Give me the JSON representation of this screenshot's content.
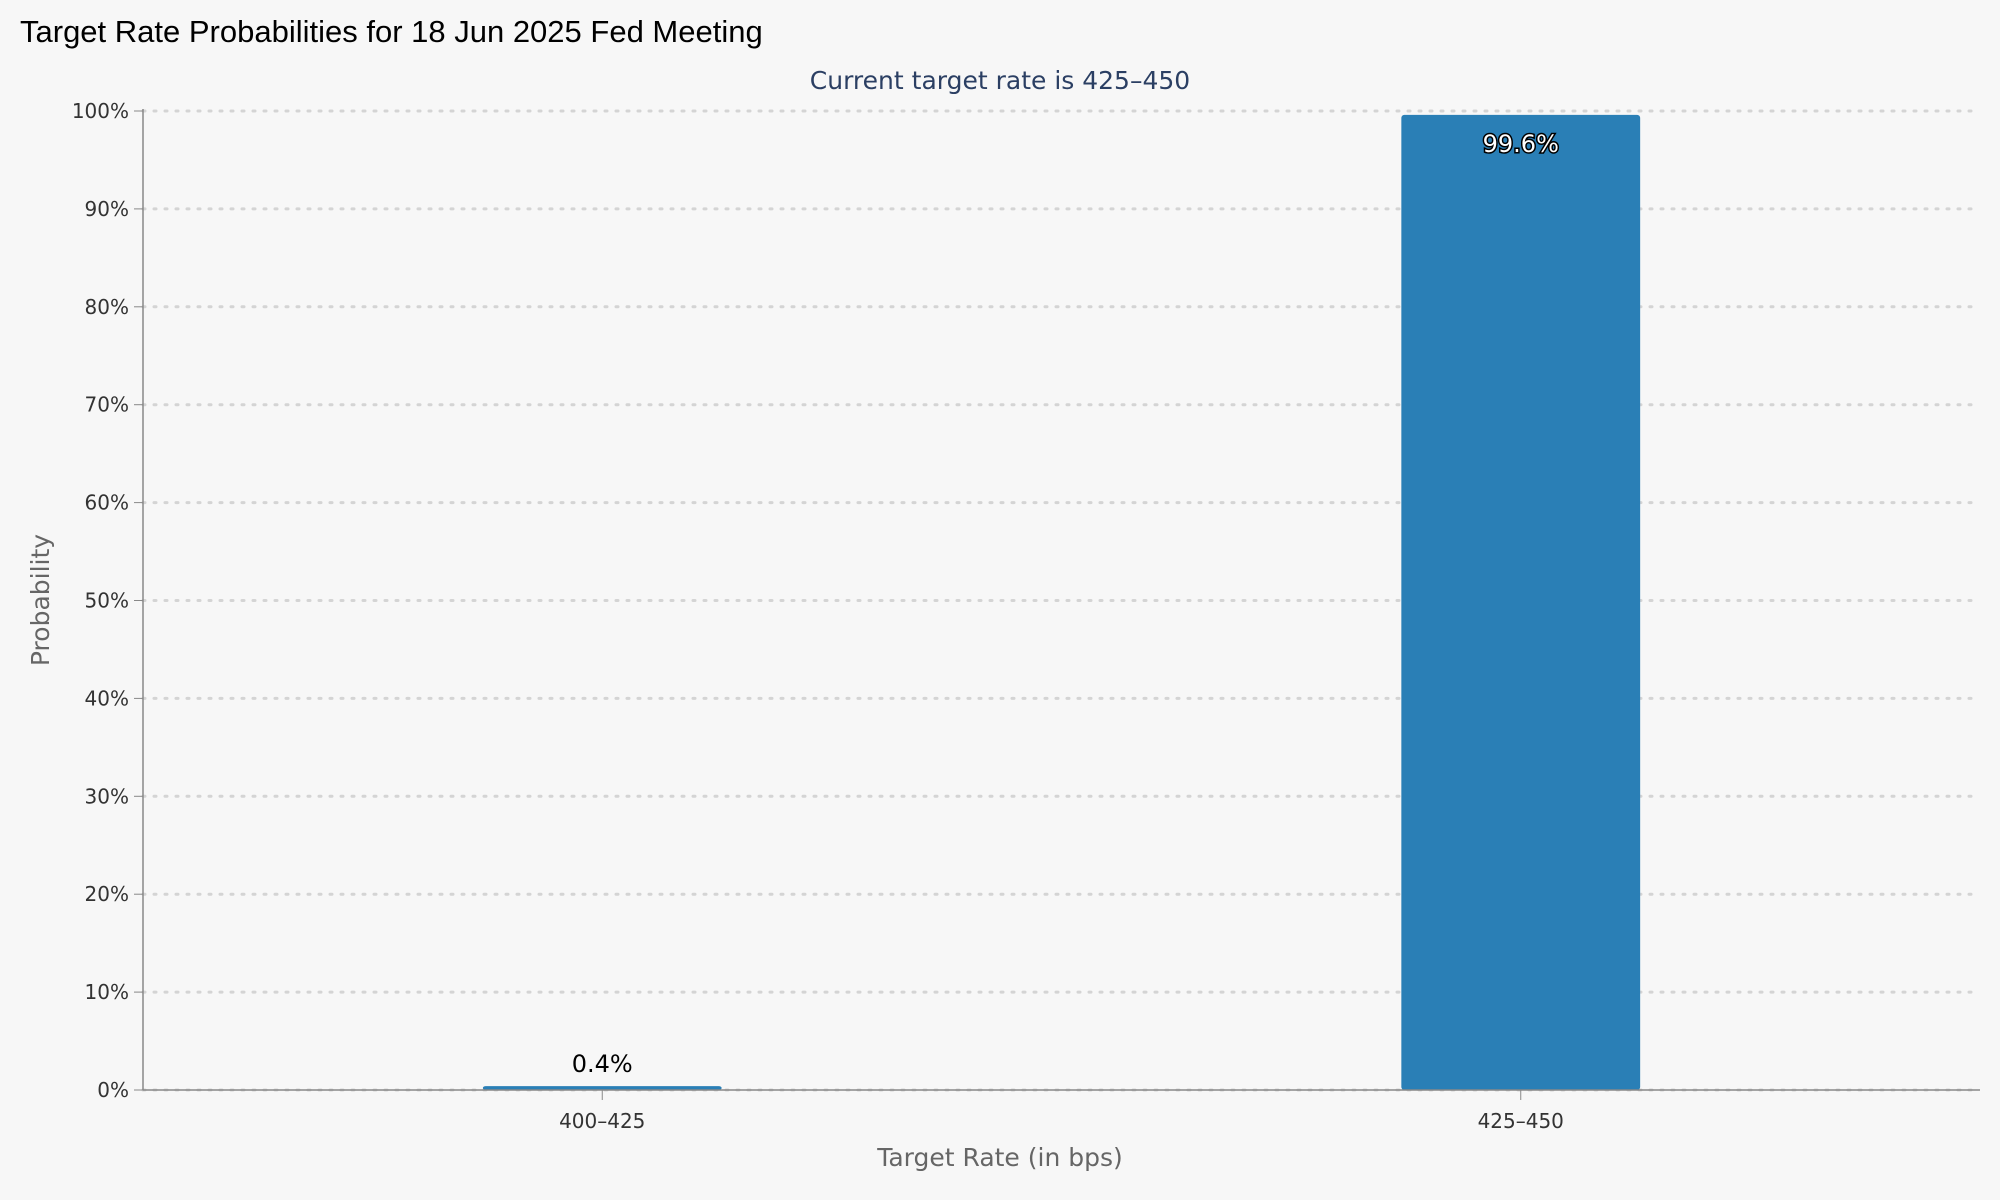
{
  "title": "Target Rate Probabilities for 18 Jun 2025 Fed Meeting",
  "colors": {
    "background": "#f7f7f7",
    "bar": "#2a7fb6",
    "subtitle": "#2b3f63",
    "gridline": "#d4d4d4",
    "axis_line": "#888888"
  },
  "chart_data": {
    "type": "bar",
    "title": "Target Rate Probabilities for 18 Jun 2025 Fed Meeting",
    "subtitle": "Current target rate is 425–450",
    "xlabel": "Target Rate (in bps)",
    "ylabel": "Probability",
    "categories": [
      "400–425",
      "425–450"
    ],
    "values": [
      0.4,
      99.6
    ],
    "data_labels": [
      "0.4%",
      "99.6%"
    ],
    "ylim": [
      0,
      100
    ],
    "yticks": [
      0,
      10,
      20,
      30,
      40,
      50,
      60,
      70,
      80,
      90,
      100
    ],
    "ytick_labels": [
      "0%",
      "10%",
      "20%",
      "30%",
      "40%",
      "50%",
      "60%",
      "70%",
      "80%",
      "90%",
      "100%"
    ],
    "grid": true,
    "legend": "none"
  }
}
